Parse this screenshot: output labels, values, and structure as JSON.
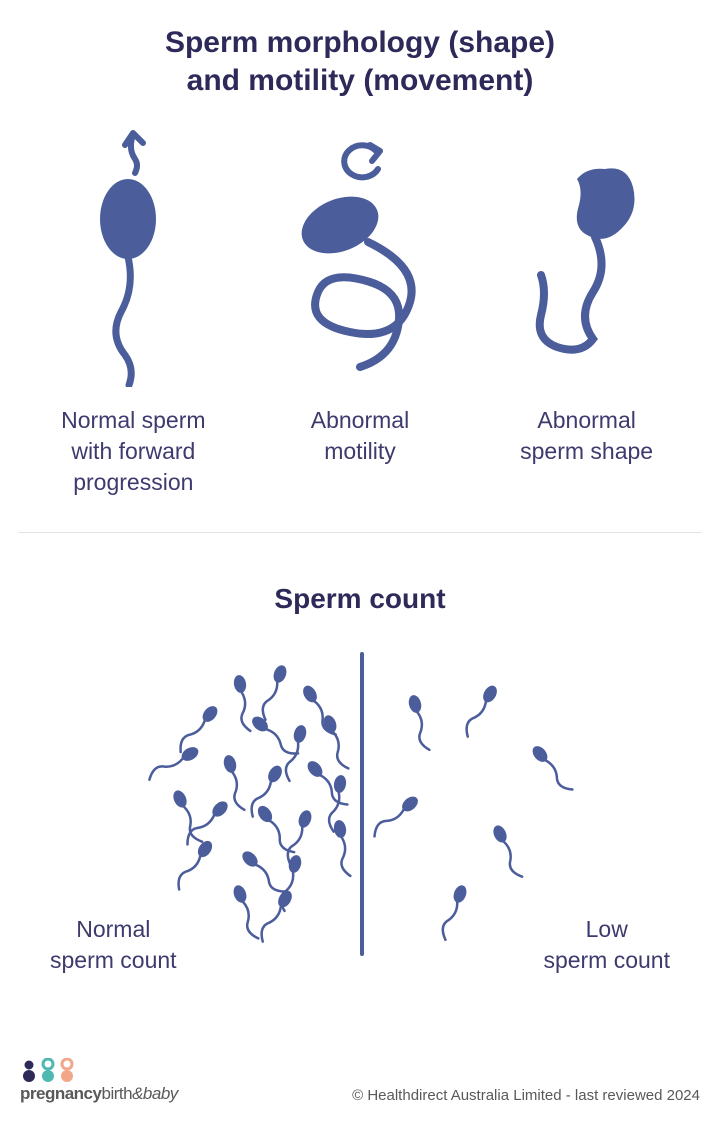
{
  "colors": {
    "title": "#2d2a5a",
    "shape": "#4b5d9b",
    "caption": "#3d3a6e",
    "divider": "#e2e2e2",
    "brand_navy": "#2d2a5a",
    "brand_teal": "#4fb8b1",
    "brand_peach": "#f2a78a",
    "footer_text": "#595959"
  },
  "typography": {
    "title_size": 30,
    "subtitle_size": 28,
    "caption_size": 23
  },
  "section1": {
    "title_line1": "Sperm morphology (shape)",
    "title_line2": "and motility (movement)",
    "items": [
      {
        "label_line1": "Normal sperm",
        "label_line2": "with forward",
        "label_line3": "progression"
      },
      {
        "label_line1": "Abnormal",
        "label_line2": "motility",
        "label_line3": ""
      },
      {
        "label_line1": "Abnormal",
        "label_line2": "sperm shape",
        "label_line3": ""
      }
    ]
  },
  "section2": {
    "title": "Sperm count",
    "left_label_line1": "Normal",
    "left_label_line2": "sperm count",
    "right_label_line1": "Low",
    "right_label_line2": "sperm count",
    "normal_count": 22,
    "low_count": 6
  },
  "brand": {
    "word1": "pregnancy",
    "word2": "birth",
    "amp": "&",
    "word3": "baby"
  },
  "copyright": "© Healthdirect Australia Limited - last reviewed 2024"
}
